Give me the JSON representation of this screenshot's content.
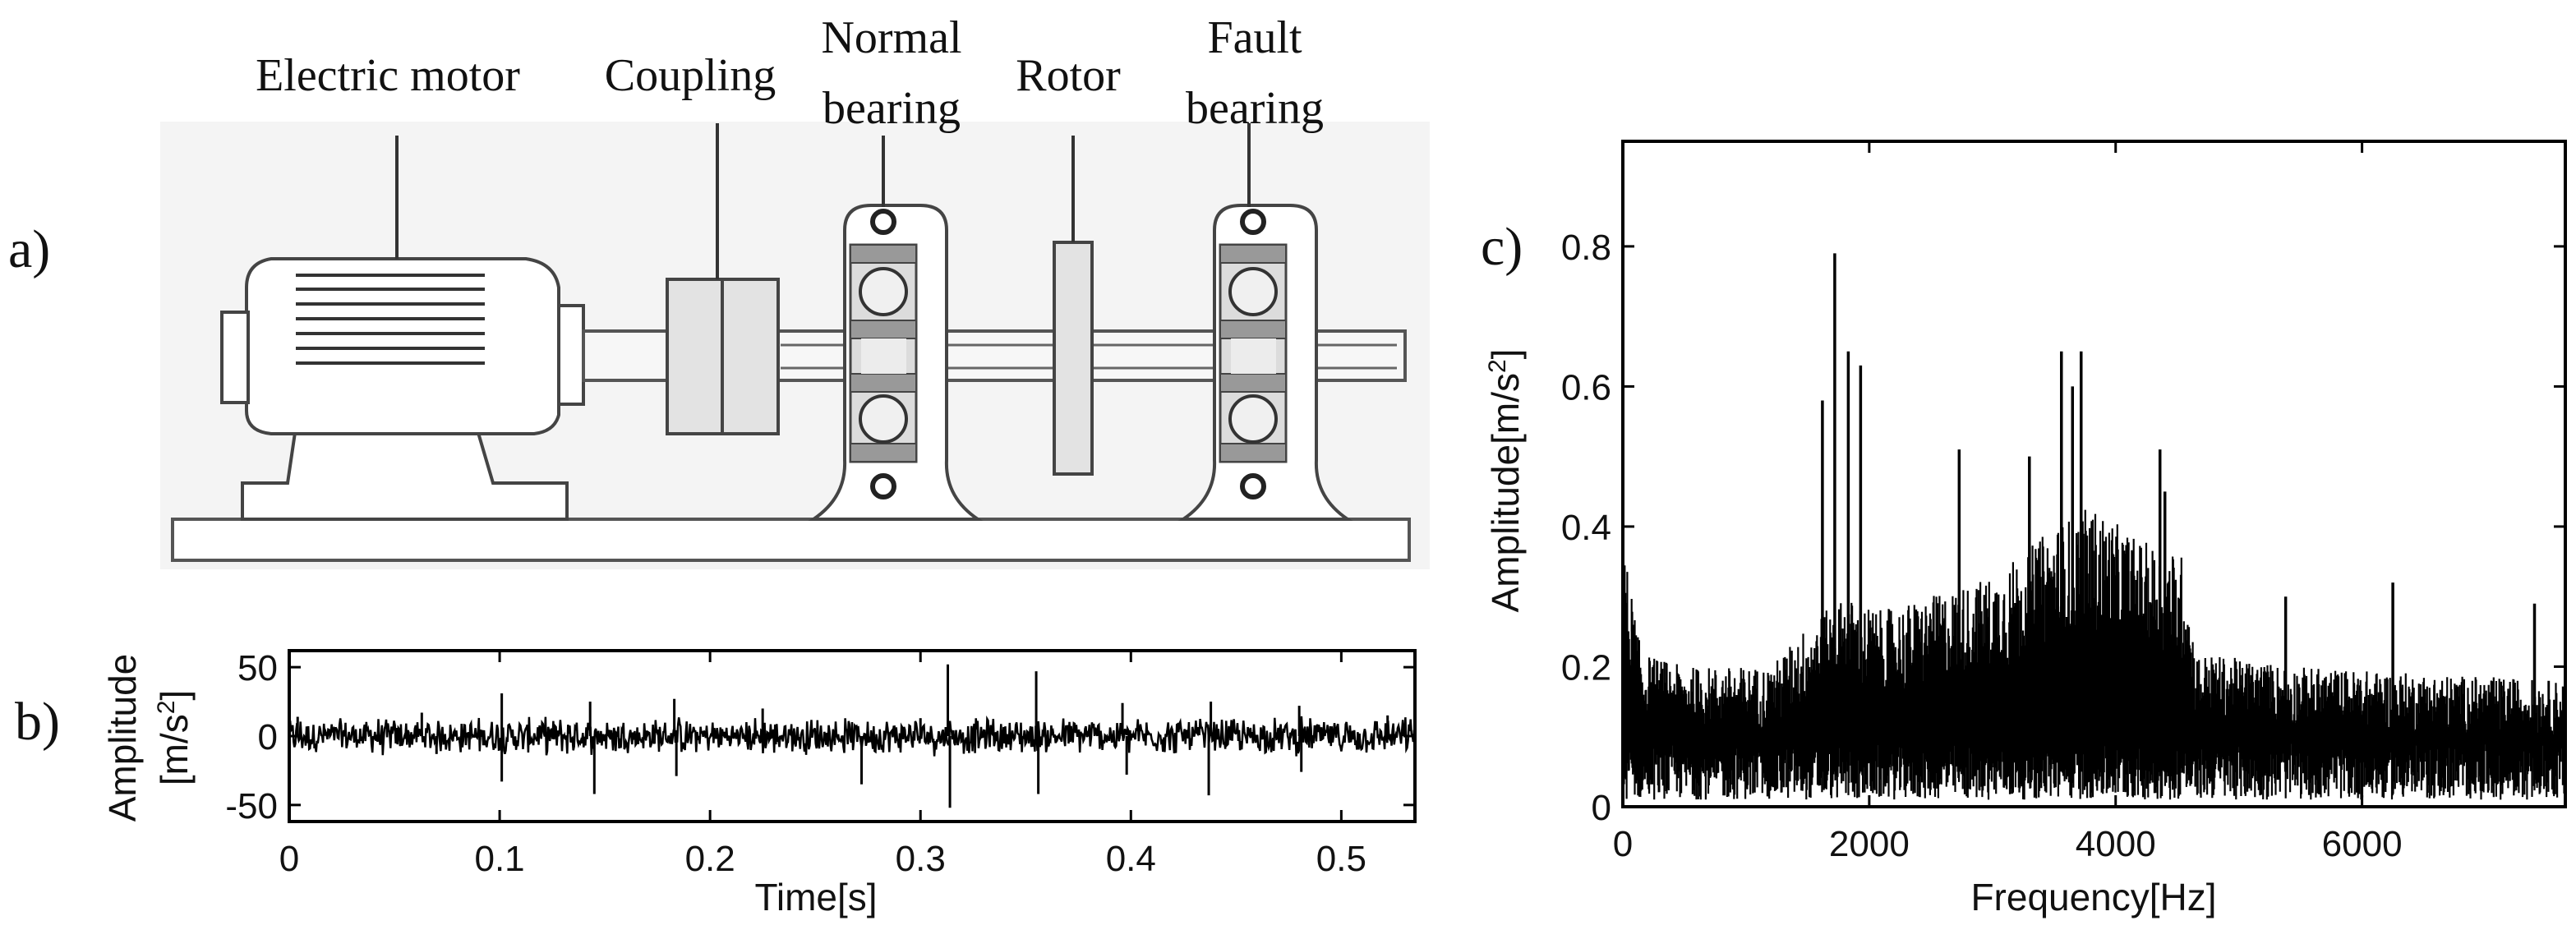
{
  "panel_labels": {
    "a": "a)",
    "b": "b)",
    "c": "c)"
  },
  "diagram": {
    "components": [
      {
        "key": "motor",
        "lines": [
          "Electric motor"
        ]
      },
      {
        "key": "coupling",
        "lines": [
          "Coupling"
        ]
      },
      {
        "key": "normal_bearing",
        "lines": [
          "Normal",
          "bearing"
        ]
      },
      {
        "key": "rotor",
        "lines": [
          "Rotor"
        ]
      },
      {
        "key": "fault_bearing",
        "lines": [
          "Fault",
          "bearing"
        ]
      }
    ]
  },
  "chart_data": [
    {
      "id": "time_signal",
      "type": "line",
      "xlabel": "Time[s]",
      "ylabel_line1": "Amplitude",
      "ylabel_line2": "[m/s",
      "ylabel_sup": "2",
      "ylabel_close": "]",
      "xlim": [
        0,
        0.535
      ],
      "ylim": [
        -62,
        62
      ],
      "xticks": [
        "0",
        "0.1",
        "0.2",
        "0.3",
        "0.4",
        "0.5"
      ],
      "xtick_values": [
        0,
        0.1,
        0.2,
        0.3,
        0.4,
        0.5
      ],
      "yticks": [
        "-50",
        "0",
        "50"
      ],
      "ytick_values": [
        -50,
        0,
        50
      ],
      "grid": false,
      "spikes": [
        {
          "x": 0.004,
          "y": 14
        },
        {
          "x": 0.063,
          "y": 17
        },
        {
          "x": 0.07,
          "y": -13
        },
        {
          "x": 0.101,
          "y": 31
        },
        {
          "x": 0.101,
          "y": -33
        },
        {
          "x": 0.143,
          "y": 25
        },
        {
          "x": 0.145,
          "y": -42
        },
        {
          "x": 0.183,
          "y": 27
        },
        {
          "x": 0.184,
          "y": -29
        },
        {
          "x": 0.225,
          "y": 20
        },
        {
          "x": 0.272,
          "y": -35
        },
        {
          "x": 0.3,
          "y": 13
        },
        {
          "x": 0.313,
          "y": 52
        },
        {
          "x": 0.314,
          "y": -52
        },
        {
          "x": 0.355,
          "y": 47
        },
        {
          "x": 0.356,
          "y": -42
        },
        {
          "x": 0.396,
          "y": 24
        },
        {
          "x": 0.398,
          "y": -28
        },
        {
          "x": 0.437,
          "y": -43
        },
        {
          "x": 0.438,
          "y": 25
        },
        {
          "x": 0.48,
          "y": 22
        },
        {
          "x": 0.481,
          "y": -26
        },
        {
          "x": 0.522,
          "y": 15
        }
      ],
      "noise_band": 10
    },
    {
      "id": "spectrum",
      "type": "line",
      "xlabel": "Frequency[Hz]",
      "ylabel": "Amplitude[m/s",
      "ylabel_sup": "2",
      "ylabel_close": "]",
      "xlim": [
        0,
        7650
      ],
      "ylim": [
        0,
        0.95
      ],
      "xticks": [
        "0",
        "2000",
        "4000",
        "6000"
      ],
      "xtick_values": [
        0,
        2000,
        4000,
        6000
      ],
      "yticks": [
        "0",
        "0.2",
        "0.4",
        "0.6",
        "0.8"
      ],
      "ytick_values": [
        0,
        0.2,
        0.4,
        0.6,
        0.8
      ],
      "grid": false,
      "envelope": [
        {
          "x": 0,
          "y": 0.38
        },
        {
          "x": 150,
          "y": 0.22
        },
        {
          "x": 500,
          "y": 0.2
        },
        {
          "x": 1200,
          "y": 0.2
        },
        {
          "x": 1500,
          "y": 0.26
        },
        {
          "x": 1800,
          "y": 0.3
        },
        {
          "x": 2100,
          "y": 0.28
        },
        {
          "x": 2500,
          "y": 0.3
        },
        {
          "x": 3000,
          "y": 0.33
        },
        {
          "x": 3500,
          "y": 0.4
        },
        {
          "x": 3800,
          "y": 0.43
        },
        {
          "x": 4200,
          "y": 0.38
        },
        {
          "x": 4550,
          "y": 0.36
        },
        {
          "x": 4650,
          "y": 0.22
        },
        {
          "x": 5500,
          "y": 0.2
        },
        {
          "x": 6500,
          "y": 0.19
        },
        {
          "x": 7650,
          "y": 0.18
        }
      ],
      "peaks": [
        {
          "x": 1620,
          "y": 0.58
        },
        {
          "x": 1720,
          "y": 0.79
        },
        {
          "x": 1830,
          "y": 0.65
        },
        {
          "x": 1930,
          "y": 0.63
        },
        {
          "x": 2730,
          "y": 0.51
        },
        {
          "x": 3300,
          "y": 0.5
        },
        {
          "x": 3560,
          "y": 0.65
        },
        {
          "x": 3650,
          "y": 0.6
        },
        {
          "x": 3720,
          "y": 0.65
        },
        {
          "x": 4360,
          "y": 0.51
        },
        {
          "x": 4400,
          "y": 0.45
        },
        {
          "x": 5380,
          "y": 0.3
        },
        {
          "x": 6250,
          "y": 0.32
        },
        {
          "x": 7400,
          "y": 0.29
        }
      ]
    }
  ]
}
